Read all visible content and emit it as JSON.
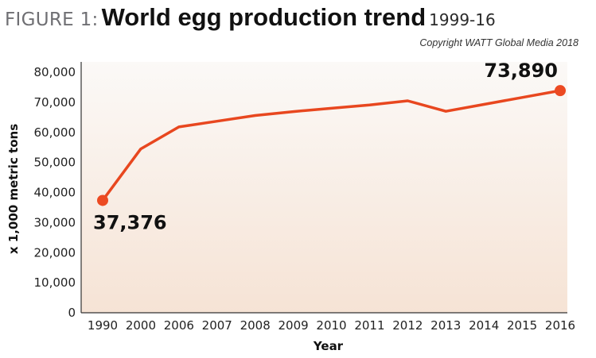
{
  "header": {
    "figure_label": "FIGURE 1:",
    "title": "World egg production trend",
    "subtitle": "1999-16",
    "copyright": "Copyright WATT Global Media 2018"
  },
  "colors": {
    "line": "#e8471f",
    "point": "#ec4a22",
    "plot_top": "#fbf9f7",
    "plot_bottom": "#f6e3d5",
    "axis": "#333333"
  },
  "chart_data": {
    "type": "line",
    "title": "World egg production trend",
    "subtitle": "1999-16",
    "xlabel": "Year",
    "ylabel": "x 1,000 metric tons",
    "categories": [
      "1990",
      "2000",
      "2006",
      "2007",
      "2008",
      "2009",
      "2010",
      "2011",
      "2012",
      "2013",
      "2014",
      "2015",
      "2016"
    ],
    "series": [
      {
        "values": [
          37376,
          54500,
          61800,
          63700,
          65600,
          66900,
          68000,
          69100,
          70500,
          67000,
          69300,
          71600,
          73890
        ]
      }
    ],
    "ylim": [
      0,
      80000
    ],
    "yticks": [
      0,
      10000,
      20000,
      30000,
      40000,
      50000,
      60000,
      70000,
      80000
    ],
    "ytick_labels": [
      "0",
      "10,000",
      "20,000",
      "30,000",
      "40,000",
      "50,000",
      "60,000",
      "70,000",
      "80,000"
    ],
    "grid": false,
    "data_labels": [
      {
        "index": 0,
        "text": "37,376"
      },
      {
        "index": 12,
        "text": "73,890"
      }
    ]
  }
}
